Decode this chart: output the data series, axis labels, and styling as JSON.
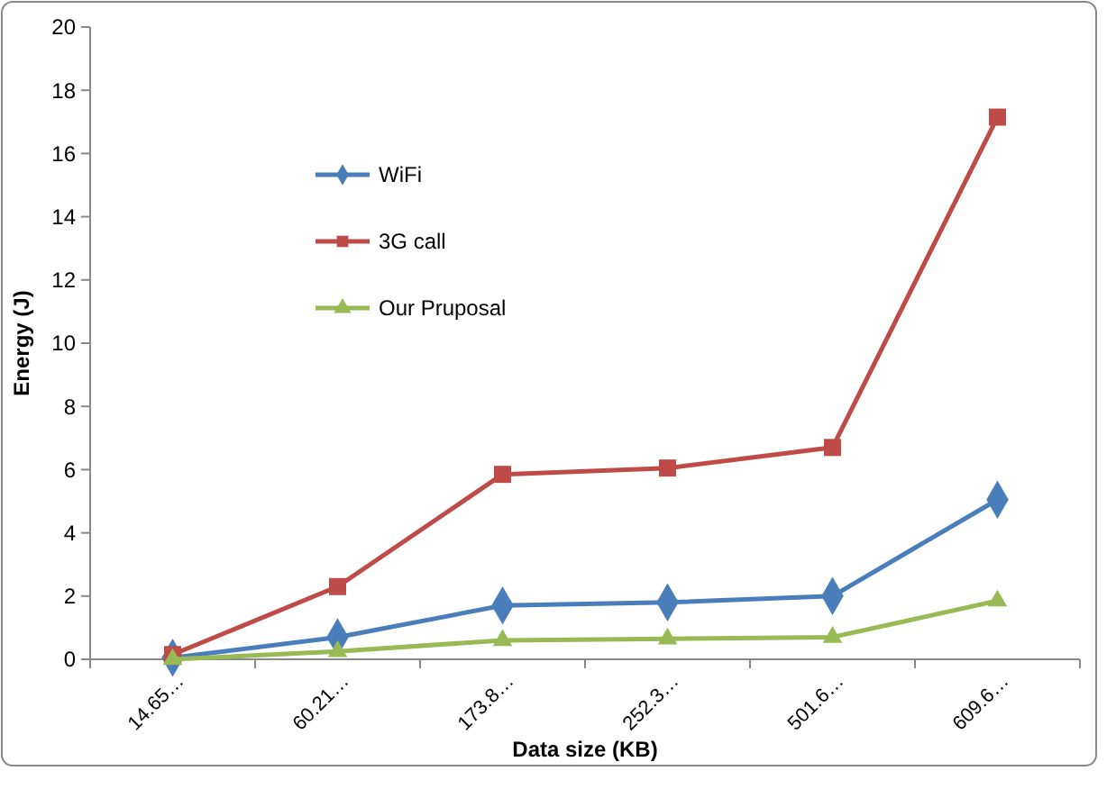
{
  "chart_data": {
    "type": "line",
    "xlabel": "Data size (KB)",
    "ylabel": "Energy (J)",
    "categories": [
      "14.65…",
      "60.21…",
      "173.8…",
      "252.3…",
      "501.6…",
      "609.6…"
    ],
    "ylim": [
      0,
      20
    ],
    "yticks": [
      0,
      2,
      4,
      6,
      8,
      10,
      12,
      14,
      16,
      18,
      20
    ],
    "legend": "top left",
    "grid": false,
    "series": [
      {
        "name": "WiFi",
        "color": "#4a7ebb",
        "marker": "diamond",
        "values": [
          0.05,
          0.7,
          1.7,
          1.8,
          2.0,
          5.05
        ]
      },
      {
        "name": "3G call",
        "color": "#be4b48",
        "marker": "square",
        "values": [
          0.15,
          2.3,
          5.85,
          6.05,
          6.7,
          17.15
        ]
      },
      {
        "name": "Our Pruposal",
        "color": "#98b954",
        "marker": "triangle",
        "values": [
          0.0,
          0.25,
          0.6,
          0.65,
          0.7,
          1.85
        ]
      }
    ]
  }
}
